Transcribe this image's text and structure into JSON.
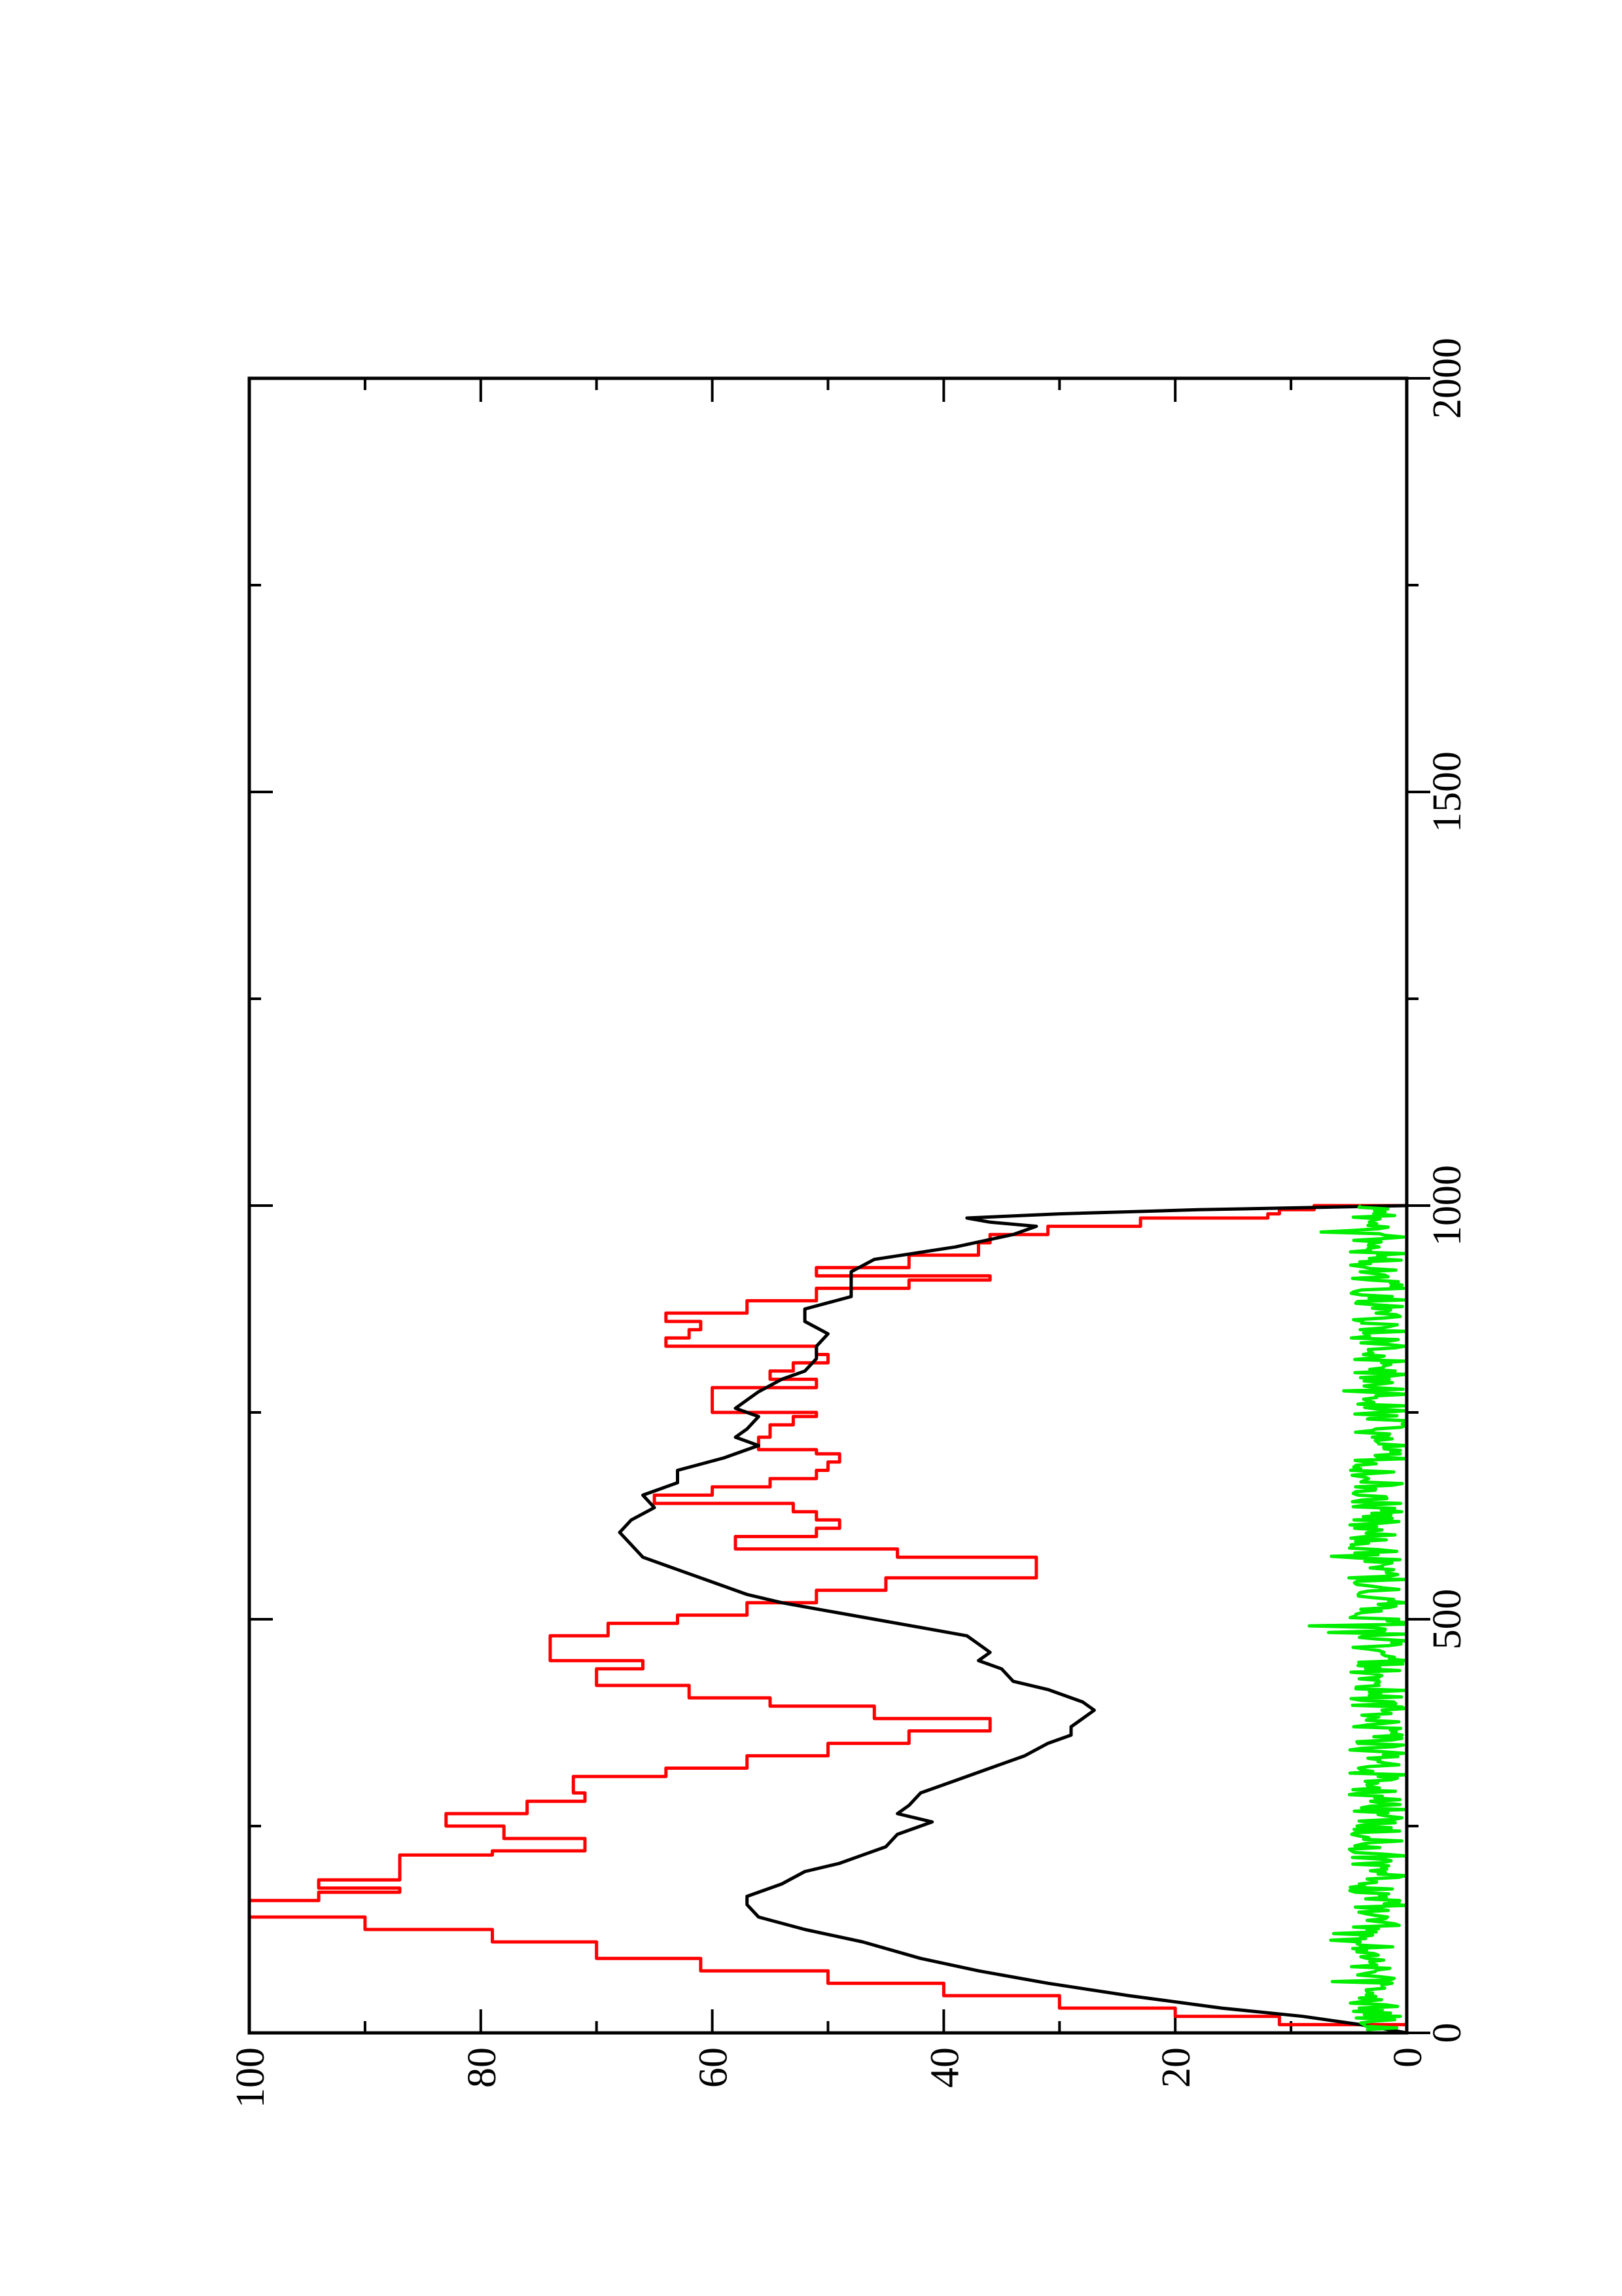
{
  "chart_data": {
    "type": "line",
    "orientation": "rotated-90-ccw",
    "title": "",
    "xlabel": "",
    "ylabel": "",
    "xlim": [
      0,
      2000
    ],
    "ylim": [
      0,
      100
    ],
    "x_ticks": [
      "0",
      "500",
      "1000",
      "1500",
      "2000"
    ],
    "y_ticks": [
      "0",
      "20",
      "40",
      "60",
      "80",
      "100"
    ],
    "grid": false,
    "legend": "none",
    "series": [
      {
        "color": "#ff0000",
        "step": true,
        "x": [
          0,
          10,
          20,
          30,
          45,
          60,
          75,
          90,
          110,
          125,
          140,
          160,
          170,
          175,
          185,
          200,
          215,
          220,
          235,
          250,
          265,
          280,
          290,
          310,
          320,
          335,
          350,
          365,
          380,
          395,
          405,
          420,
          440,
          450,
          465,
          480,
          495,
          505,
          520,
          535,
          550,
          575,
          585,
          600,
          610,
          620,
          630,
          640,
          650,
          660,
          670,
          680,
          690,
          700,
          705,
          720,
          735,
          745,
          750,
          760,
          770,
          780,
          790,
          800,
          810,
          820,
          830,
          840,
          850,
          860,
          870,
          885,
          900,
          910,
          915,
          925,
          940,
          955,
          965,
          975,
          985,
          990,
          995,
          1000
        ],
        "y": [
          0,
          11,
          20,
          30,
          40,
          50,
          61,
          70,
          79,
          90,
          100,
          94,
          87,
          94,
          87,
          87,
          79,
          71,
          78,
          83,
          76,
          71,
          72,
          64,
          57,
          50,
          43,
          36,
          46,
          55,
          62,
          70,
          66,
          74,
          74,
          69,
          63,
          57,
          51,
          45,
          32,
          44,
          58,
          51,
          49,
          51,
          53,
          65,
          60,
          55,
          51,
          50,
          49,
          51,
          56,
          55,
          53,
          51,
          60,
          60,
          60,
          51,
          55,
          53,
          50,
          51,
          64,
          62,
          61,
          64,
          57,
          51,
          43,
          36,
          51,
          43,
          37,
          36,
          31,
          23,
          12,
          11,
          8,
          0
        ]
      },
      {
        "color": "#000000",
        "step": false,
        "x": [
          0,
          10,
          20,
          30,
          45,
          60,
          75,
          90,
          110,
          125,
          140,
          155,
          165,
          180,
          195,
          205,
          215,
          225,
          240,
          255,
          265,
          275,
          290,
          305,
          320,
          335,
          350,
          360,
          370,
          380,
          390,
          400,
          415,
          425,
          440,
          450,
          460,
          470,
          480,
          490,
          500,
          510,
          520,
          530,
          545,
          560,
          575,
          590,
          605,
          620,
          635,
          650,
          665,
          680,
          695,
          710,
          720,
          730,
          745,
          755,
          765,
          775,
          790,
          800,
          815,
          830,
          845,
          860,
          875,
          890,
          905,
          920,
          935,
          950,
          965,
          975,
          980,
          985,
          990,
          995,
          1000
        ],
        "y": [
          0,
          4,
          9,
          16,
          24,
          31,
          37,
          42,
          47,
          52,
          56,
          57,
          57,
          54,
          52,
          49,
          47,
          45,
          44,
          41,
          44,
          43,
          42,
          39,
          36,
          33,
          31,
          29,
          29,
          28,
          27,
          28,
          31,
          34,
          35,
          37,
          36,
          37,
          38,
          42,
          46,
          50,
          54,
          57,
          60,
          63,
          66,
          67,
          68,
          67,
          65,
          66,
          63,
          63,
          59,
          56,
          58,
          57,
          56,
          58,
          57,
          56,
          54,
          52,
          51,
          51,
          50,
          52,
          52,
          48,
          48,
          48,
          46,
          39,
          34,
          32,
          36,
          38,
          30,
          18,
          0
        ]
      },
      {
        "color": "#00ee00",
        "step": false,
        "noise": true,
        "x_start": 0,
        "x_end": 1000,
        "typical_range": [
          0,
          5
        ],
        "peak": 9
      }
    ]
  }
}
